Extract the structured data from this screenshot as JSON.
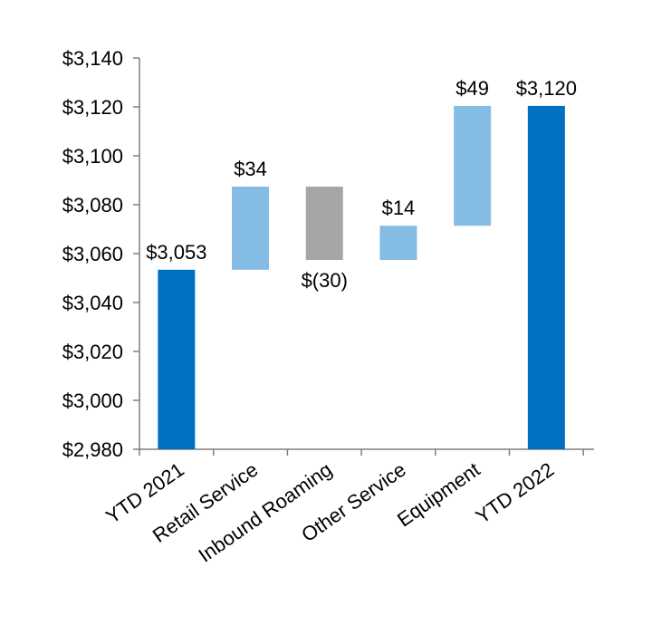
{
  "chart_data": {
    "type": "bar",
    "variant": "waterfall",
    "title": "",
    "xlabel": "",
    "ylabel": "",
    "ylim": [
      2980,
      3140
    ],
    "ytick_step": 20,
    "grid": false,
    "legend": "none",
    "y_tick_labels": [
      "$2,980",
      "$3,000",
      "$3,020",
      "$3,040",
      "$3,060",
      "$3,080",
      "$3,100",
      "$3,120",
      "$3,140"
    ],
    "categories": [
      "YTD 2021",
      "Retail Service",
      "Inbound Roaming",
      "Other Service",
      "Equipment",
      "YTD 2022"
    ],
    "bars": [
      {
        "start": 2980,
        "end": 3053.4,
        "kind": "total",
        "label": "$3,053"
      },
      {
        "start": 3053.4,
        "end": 3087.4,
        "kind": "increase",
        "label": "$34"
      },
      {
        "start": 3087.4,
        "end": 3057.4,
        "kind": "decrease",
        "label": "$(30)"
      },
      {
        "start": 3057.4,
        "end": 3071.4,
        "kind": "increase",
        "label": "$14"
      },
      {
        "start": 3071.4,
        "end": 3120.4,
        "kind": "increase",
        "label": "$49"
      },
      {
        "start": 2980,
        "end": 3120.4,
        "kind": "total",
        "label": "$3,120"
      }
    ],
    "colors": {
      "total": "#0070C0",
      "increase": "#85BCE4",
      "decrease": "#A6A6A6",
      "axis": "#7F7F7F"
    }
  }
}
